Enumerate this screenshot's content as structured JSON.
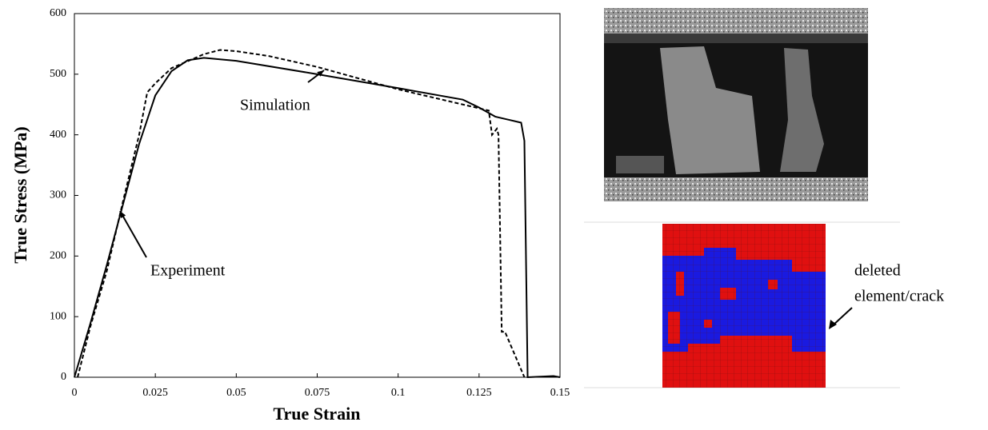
{
  "chart_data": {
    "type": "line",
    "x_label": "True Strain",
    "y_label": "True Stress (MPa)",
    "xlim": [
      0,
      0.15
    ],
    "ylim": [
      0,
      600
    ],
    "xticks": [
      0,
      0.025,
      0.05,
      0.075,
      0.1,
      0.125,
      0.15
    ],
    "yticks": [
      0,
      100,
      200,
      300,
      400,
      500,
      600
    ],
    "grid": false,
    "series": [
      {
        "name": "Experiment",
        "color": "#000000",
        "line_style": "solid",
        "x": [
          0,
          0.005,
          0.01,
          0.015,
          0.02,
          0.025,
          0.03,
          0.035,
          0.04,
          0.05,
          0.075,
          0.1,
          0.12,
          0.125,
          0.13,
          0.138,
          0.139,
          0.14,
          0.148,
          0.15
        ],
        "values": [
          0,
          90,
          185,
          285,
          385,
          465,
          505,
          523,
          527,
          522,
          500,
          477,
          458,
          445,
          430,
          420,
          390,
          0,
          2,
          0
        ]
      },
      {
        "name": "Simulation",
        "color": "#000000",
        "line_style": "dashed",
        "x": [
          0.001,
          0.005,
          0.01,
          0.015,
          0.02,
          0.0225,
          0.025,
          0.03,
          0.04,
          0.045,
          0.05,
          0.06,
          0.075,
          0.1,
          0.12,
          0.128,
          0.129,
          0.1305,
          0.131,
          0.132,
          0.133,
          0.135,
          0.137,
          0.139
        ],
        "values": [
          0,
          85,
          175,
          290,
          400,
          470,
          485,
          510,
          533,
          540,
          538,
          530,
          512,
          475,
          450,
          440,
          400,
          410,
          400,
          75,
          75,
          50,
          25,
          0
        ]
      }
    ],
    "annotations": [
      {
        "text": "Simulation",
        "series": 1
      },
      {
        "text": "Experiment",
        "series": 0
      }
    ]
  },
  "figure_labels": [
    "deleted",
    "element/crack"
  ]
}
